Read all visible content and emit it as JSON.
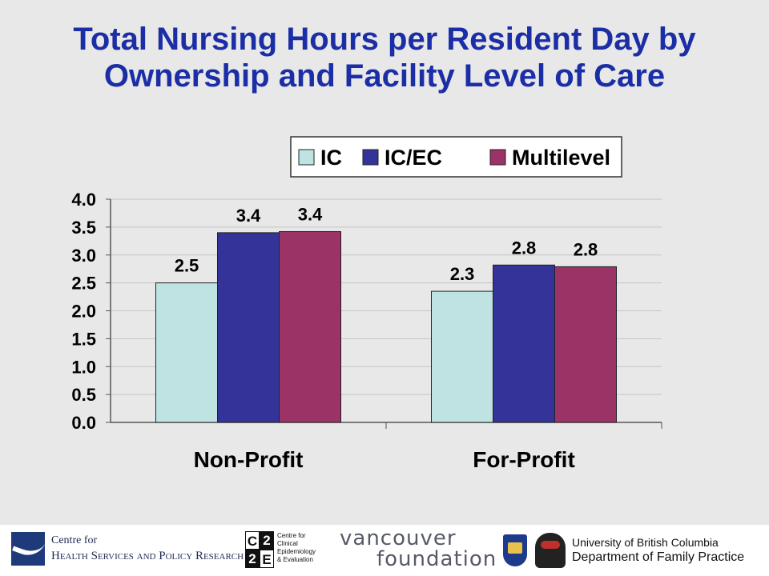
{
  "chart_data": {
    "type": "bar",
    "title": [
      "Total Nursing Hours per Resident Day by",
      "Ownership and Facility Level of Care"
    ],
    "categories": [
      "Non-Profit",
      "For-Profit"
    ],
    "series": [
      {
        "name": "IC",
        "color": "#bfe3e3",
        "values": [
          2.5,
          2.35
        ],
        "labels": [
          "2.5",
          "2.3"
        ]
      },
      {
        "name": "IC/EC",
        "color": "#33339a",
        "values": [
          3.4,
          2.82
        ],
        "labels": [
          "3.4",
          "2.8"
        ]
      },
      {
        "name": "Multilevel",
        "color": "#9b3366",
        "values": [
          3.42,
          2.79
        ],
        "labels": [
          "3.4",
          "2.8"
        ]
      }
    ],
    "yticks": [
      "0.0",
      "0.5",
      "1.0",
      "1.5",
      "2.0",
      "2.5",
      "3.0",
      "3.5",
      "4.0"
    ],
    "ylim": [
      0,
      4
    ],
    "xlabel": "",
    "ylabel": "",
    "grid": true,
    "legend_position": "top-right"
  },
  "footer": {
    "chsr": {
      "line1": "Centre for",
      "line2": "Health Services and Policy Research"
    },
    "c2e": {
      "cells": [
        "C",
        "2",
        "2",
        "E"
      ],
      "text": [
        "Centre for",
        "Clinical",
        "Epidemiology",
        "& Evaluation"
      ]
    },
    "vancouver": {
      "line1": "vancouver",
      "line2": "foundation"
    },
    "ubc": {
      "line1": "University of British Columbia",
      "line2": "Department of Family Practice"
    }
  }
}
